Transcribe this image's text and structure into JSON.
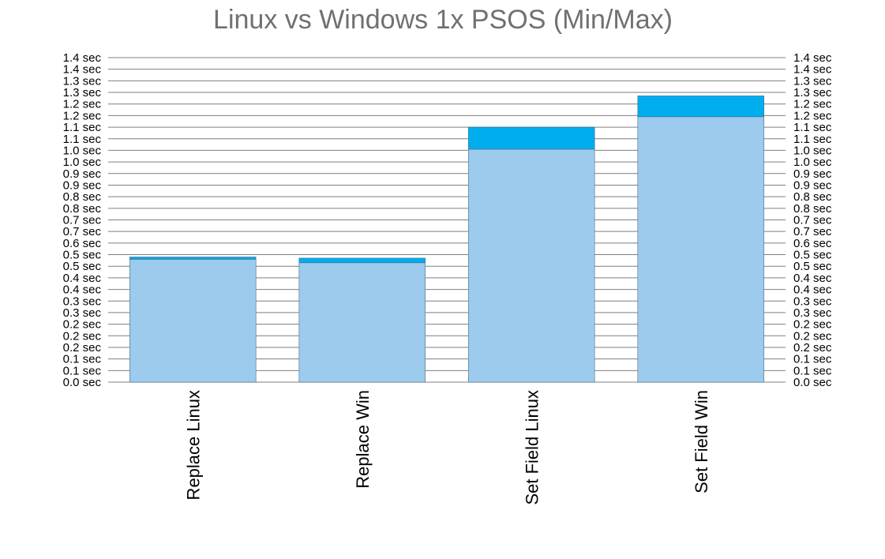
{
  "chart_data": {
    "type": "bar",
    "stacked": true,
    "title": "Linux vs Windows 1x PSOS (Min/Max)",
    "categories": [
      "Replace Linux",
      "Replace Win",
      "Set Field Linux",
      "Set Field Win"
    ],
    "series": [
      {
        "color": "#9dcbee",
        "values": [
          0.53,
          0.515,
          1.005,
          1.145
        ]
      },
      {
        "color": "#00adef",
        "values": [
          0.01,
          0.02,
          0.095,
          0.09
        ]
      }
    ],
    "y_ticks": [
      "0.0 sec",
      "0.1 sec",
      "0.1 sec",
      "0.2 sec",
      "0.2 sec",
      "0.2 sec",
      "0.3 sec",
      "0.3 sec",
      "0.4 sec",
      "0.4 sec",
      "0.5 sec",
      "0.5 sec",
      "0.6 sec",
      "0.7 sec",
      "0.7 sec",
      "0.8 sec",
      "0.8 sec",
      "0.9 sec",
      "0.9 sec",
      "1.0 sec",
      "1.0 sec",
      "1.1 sec",
      "1.1 sec",
      "1.2 sec",
      "1.2 sec",
      "1.3 sec",
      "1.3 sec",
      "1.4 sec",
      "1.4 sec"
    ],
    "y_tick_values": [
      0.0,
      0.05,
      0.1,
      0.15,
      0.2,
      0.25,
      0.3,
      0.35,
      0.4,
      0.45,
      0.5,
      0.55,
      0.6,
      0.65,
      0.7,
      0.75,
      0.8,
      0.85,
      0.9,
      0.95,
      1.0,
      1.05,
      1.1,
      1.15,
      1.2,
      1.25,
      1.3,
      1.35,
      1.4
    ],
    "ylim": [
      0,
      1.4
    ],
    "grid": true,
    "y_axis_both_sides": true
  }
}
